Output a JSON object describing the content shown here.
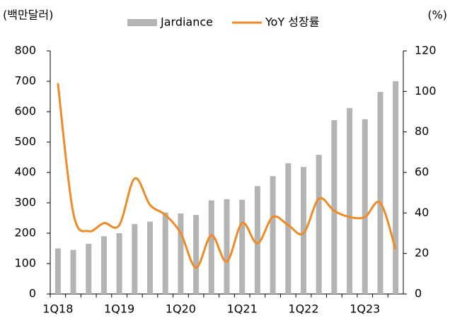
{
  "chart_data": {
    "type": "bar_line",
    "y_label": "(백만달러)",
    "y2_label": "(%)",
    "categories": [
      "1Q18",
      null,
      null,
      null,
      "1Q19",
      null,
      null,
      null,
      "1Q20",
      null,
      null,
      null,
      "1Q21",
      null,
      null,
      null,
      "1Q22",
      null,
      null,
      null,
      "1Q23",
      null,
      null
    ],
    "series": [
      {
        "name": "Jardiance",
        "type": "bar",
        "color": "#b4b4b4",
        "axis": "y",
        "values": [
          150,
          145,
          165,
          190,
          200,
          230,
          238,
          268,
          265,
          260,
          308,
          312,
          310,
          355,
          388,
          430,
          418,
          458,
          572,
          612,
          575,
          665,
          700
        ]
      },
      {
        "name": "YoY 성장률",
        "type": "line",
        "color": "#f08a24",
        "axis": "y2",
        "values": [
          104,
          40,
          31,
          35,
          34,
          57,
          44,
          39,
          30,
          13,
          29,
          16,
          35,
          25,
          38,
          34,
          30,
          47,
          41,
          38,
          38,
          45,
          22
        ]
      }
    ],
    "ylim": [
      0,
      800
    ],
    "yticks": [
      0,
      100,
      200,
      300,
      400,
      500,
      600,
      700,
      800
    ],
    "y2lim": [
      0,
      120
    ],
    "y2ticks": [
      0,
      20,
      40,
      60,
      80,
      100,
      120
    ]
  }
}
